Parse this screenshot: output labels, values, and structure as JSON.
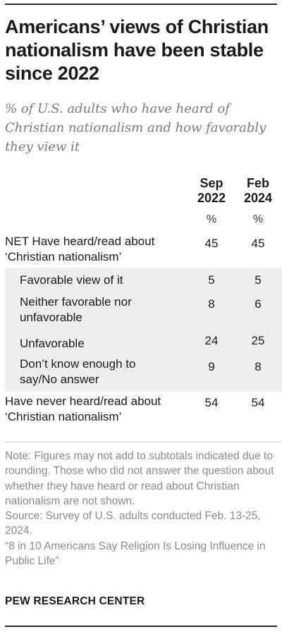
{
  "title": "Americans’ views of Christian nationalism have been stable since 2022",
  "subtitle": "% of U.S. adults who have heard of Christian nationalism and how favorably they view it",
  "chart_data": {
    "type": "table",
    "columns": [
      {
        "line1": "Sep",
        "line2": "2022",
        "unit": "%"
      },
      {
        "line1": "Feb",
        "line2": "2024",
        "unit": "%"
      }
    ],
    "rows": [
      {
        "label_line1": "NET Have heard/read about",
        "label_line2": "‘Christian nationalism’",
        "values": [
          "45",
          "45"
        ]
      },
      {
        "label_line1": "Favorable view of it",
        "label_line2": "",
        "values": [
          "5",
          "5"
        ]
      },
      {
        "label_line1": "Neither favorable nor",
        "label_line2": "unfavorable",
        "values": [
          "8",
          "6"
        ]
      },
      {
        "label_line1": "Unfavorable",
        "label_line2": "",
        "values": [
          "24",
          "25"
        ]
      },
      {
        "label_line1": "Don’t know enough to",
        "label_line2": "say/No answer",
        "values": [
          "9",
          "8"
        ]
      },
      {
        "label_line1": "Have never heard/read about",
        "label_line2": "‘Christian nationalism’",
        "values": [
          "54",
          "54"
        ]
      }
    ]
  },
  "notes": [
    "Note: Figures may not add to subtotals indicated due to rounding. Those who did not answer the question about whether they have heard or read about Christian nationalism are not shown.",
    "Source: Survey of U.S. adults conducted Feb. 13-25, 2024.",
    "“8 in 10 Americans Say Religion Is Losing Influence in Public Life”"
  ],
  "source_label": "PEW RESEARCH CENTER",
  "colors": {
    "text": "#1a1a1a",
    "muted": "#8a8a8a",
    "shade": "#efefef",
    "rule": "#2b2b2b"
  }
}
